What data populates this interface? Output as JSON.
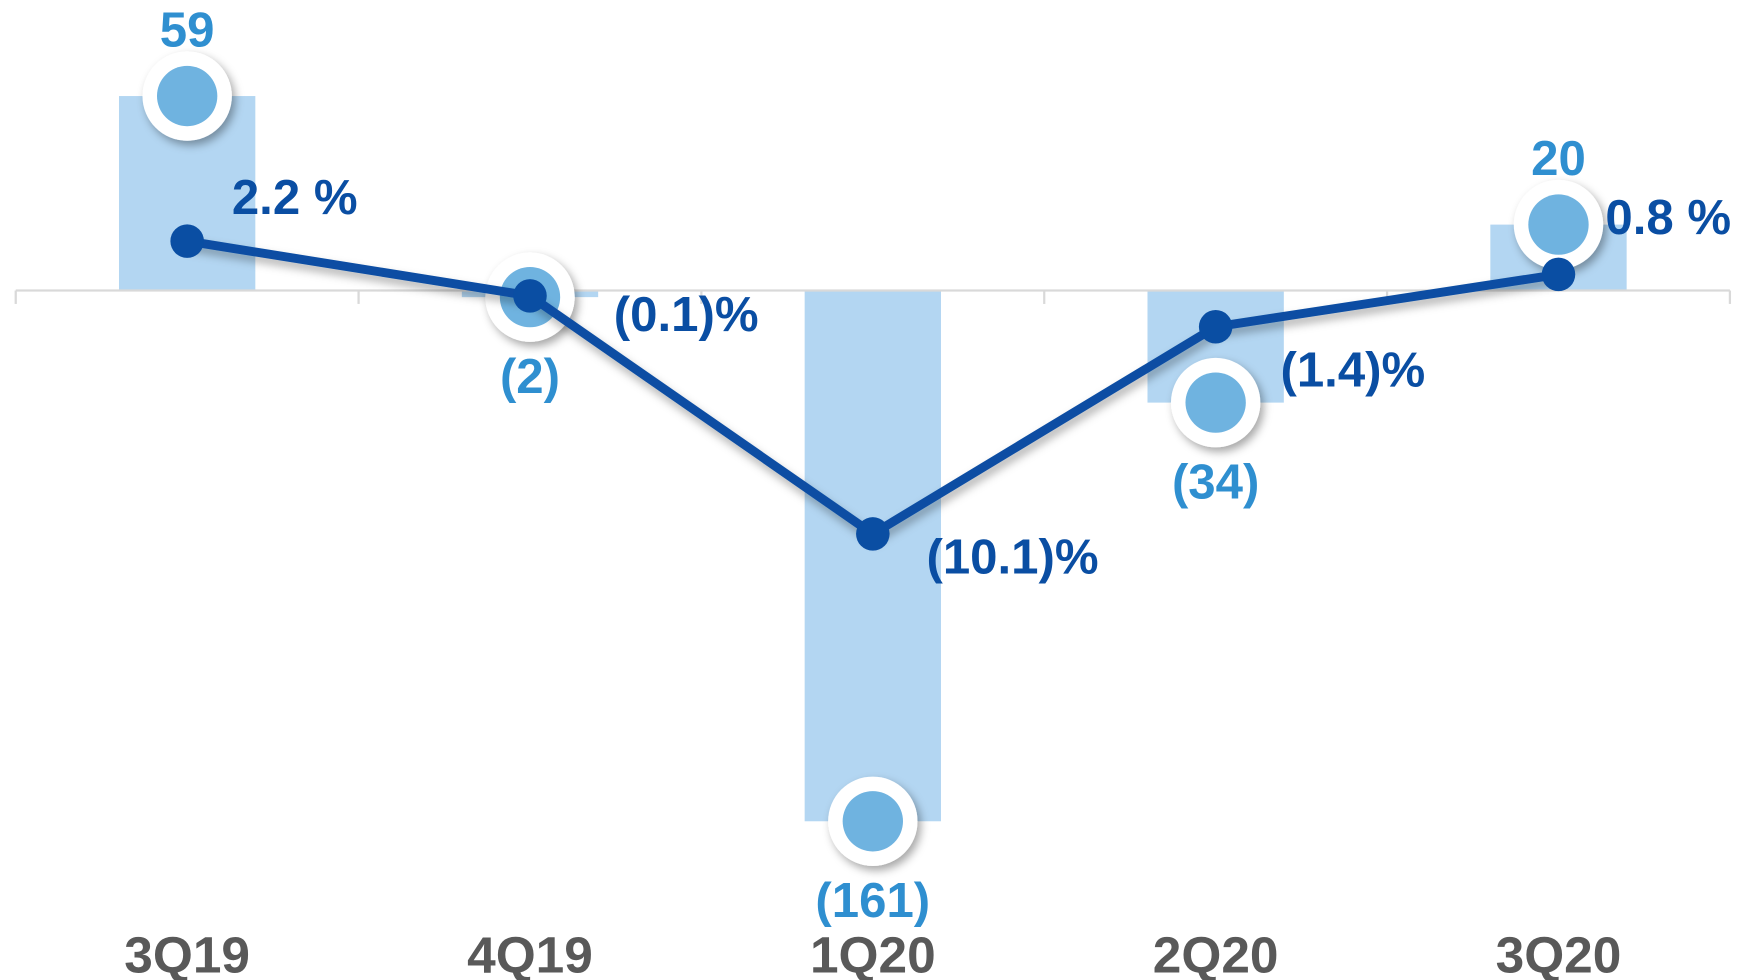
{
  "chart_data": {
    "type": "bar",
    "categories": [
      "3Q19",
      "4Q19",
      "1Q20",
      "2Q20",
      "3Q20"
    ],
    "series": [
      {
        "type": "bar",
        "color": "#b3d6f2",
        "marker_color": "#6fb3e0",
        "label_color": "#2f8fd0",
        "values": [
          59,
          -2,
          -161,
          -34,
          20
        ],
        "value_labels": [
          "59",
          "(2)",
          "(161)",
          "(34)",
          "20"
        ]
      },
      {
        "type": "line",
        "axis": "y2",
        "color": "#0a4ea3",
        "values": [
          2.2,
          -0.1,
          -10.1,
          -1.4,
          0.8
        ],
        "value_labels": [
          "2.2 %",
          "(0.1)%",
          "(10.1)%",
          "(1.4)%",
          "0.8 %"
        ]
      }
    ],
    "ylim": [
      -180,
      80
    ],
    "y2lim": [
      -24.8,
      11.2
    ]
  }
}
